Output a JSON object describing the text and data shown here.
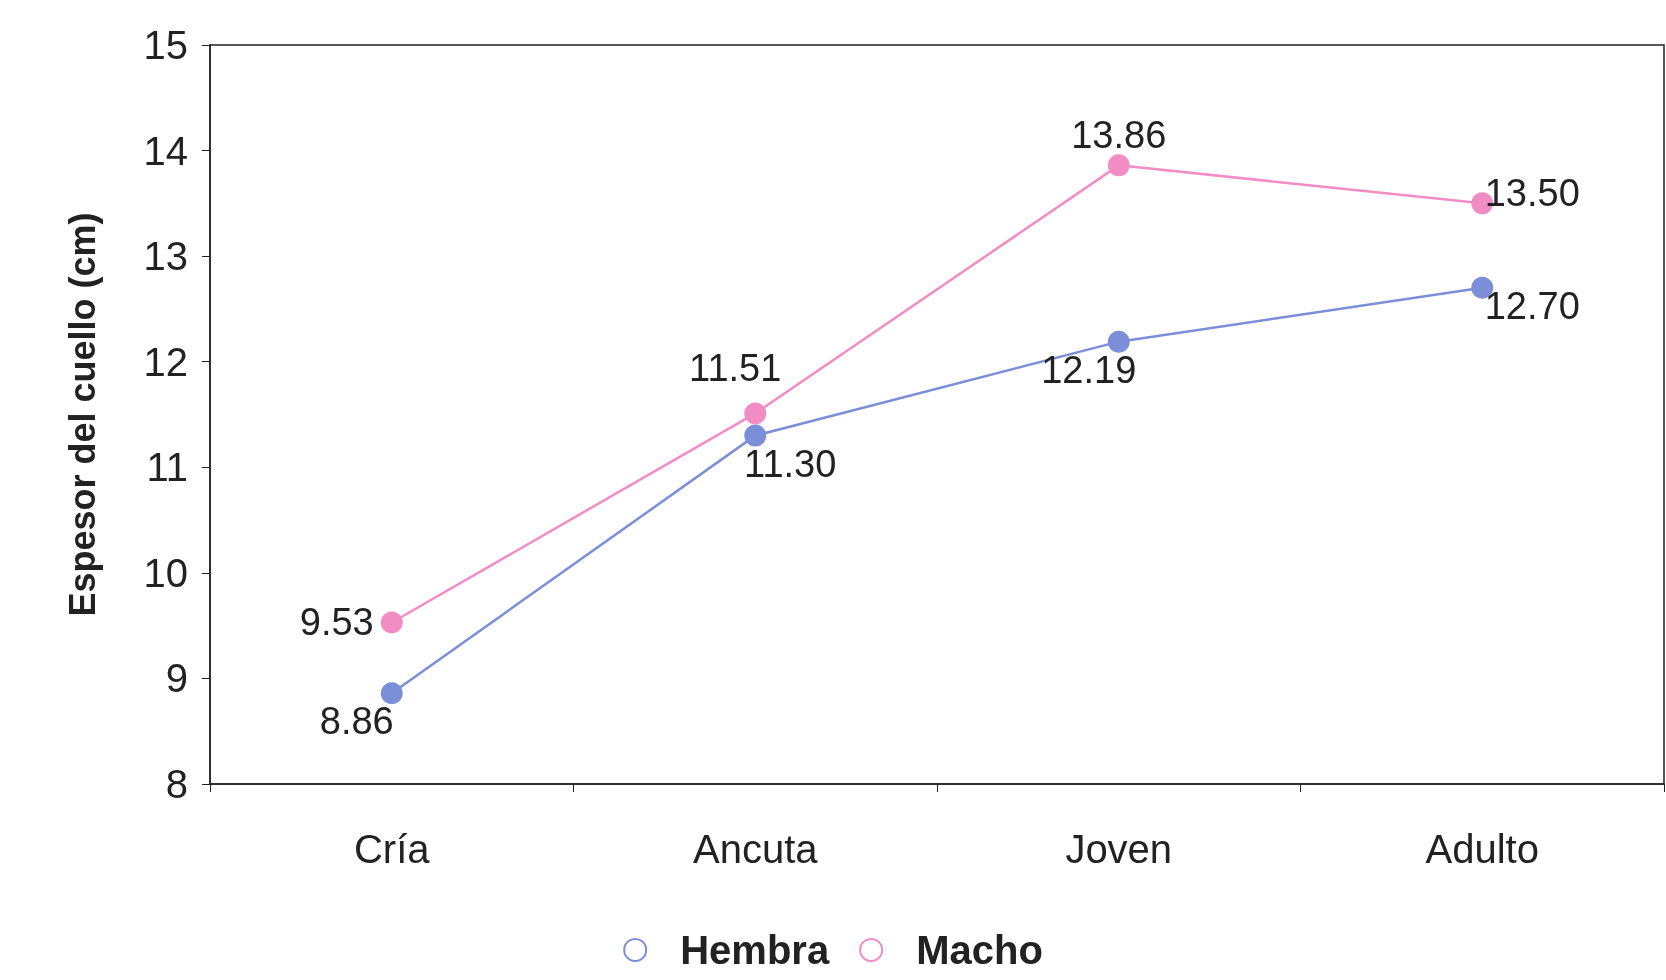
{
  "chart_data": {
    "type": "line",
    "ylabel": "Espesor del cuello (cm)",
    "categories": [
      "Cría",
      "Ancuta",
      "Joven",
      "Adulto"
    ],
    "series": [
      {
        "name": "Hembra",
        "color": "#7b8ed8",
        "values": [
          8.86,
          11.3,
          12.19,
          12.7
        ],
        "value_labels": [
          "8.86",
          "11.30",
          "12.19",
          "12.70"
        ]
      },
      {
        "name": "Macho",
        "color": "#f28cc4",
        "values": [
          9.53,
          11.51,
          13.86,
          13.5
        ],
        "value_labels": [
          "9.53",
          "11.51",
          "13.86",
          "13.50"
        ]
      }
    ],
    "ylim": [
      8,
      15
    ],
    "yticks": [
      8,
      9,
      10,
      11,
      12,
      13,
      14,
      15
    ],
    "grid": false,
    "legend": "bottom",
    "marker": "circle",
    "line_style": "solid"
  }
}
